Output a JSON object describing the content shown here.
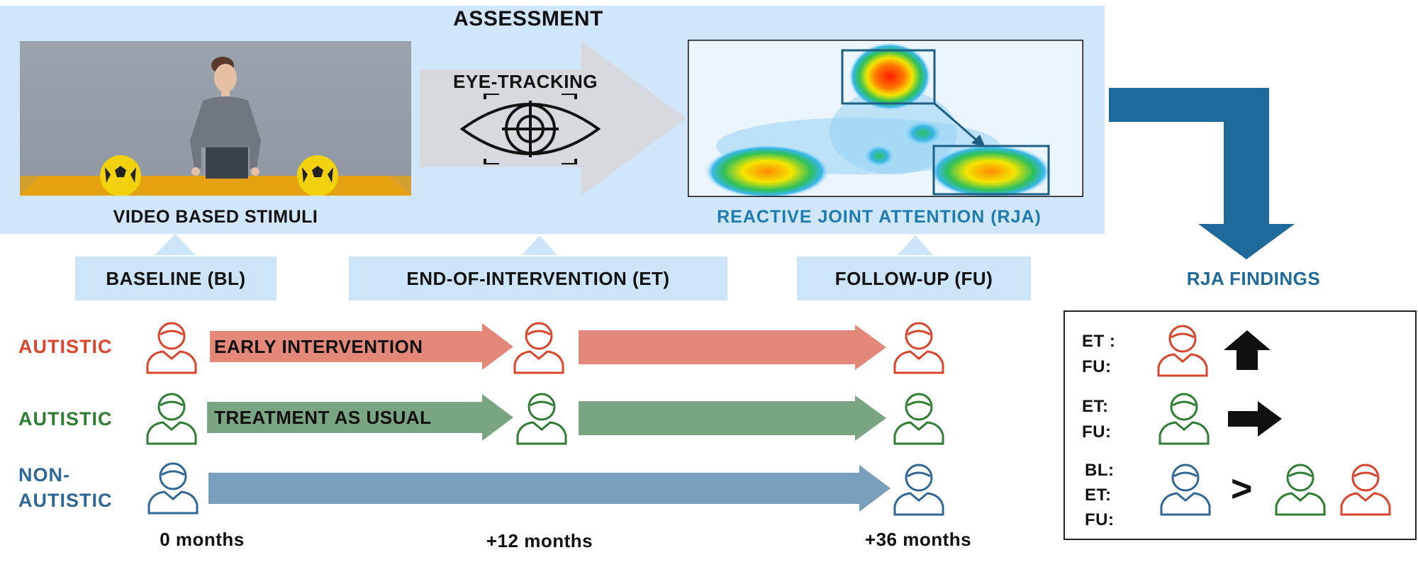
{
  "assessment": {
    "title": "ASSESSMENT",
    "stimuli_label": "VIDEO BASED STIMULI",
    "eye_tracking_label": "EYE-TRACKING",
    "rja_label": "REACTIVE JOINT ATTENTION (RJA)"
  },
  "timepoints": [
    {
      "label": "BASELINE (BL)",
      "time": "0 months"
    },
    {
      "label": "END-OF-INTERVENTION (ET)",
      "time": "+12 months"
    },
    {
      "label": "FOLLOW-UP (FU)",
      "time": "+36 months"
    }
  ],
  "groups": [
    {
      "name": "AUTISTIC",
      "arm": "EARLY INTERVENTION",
      "color": "#d9442b",
      "arrow_color": "#e4897a"
    },
    {
      "name": "AUTISTIC",
      "arm": "TREATMENT AS USUAL",
      "color": "#2e7d32",
      "arrow_color": "#7aa582"
    },
    {
      "name_line1": "NON-",
      "name_line2": "AUTISTIC",
      "color": "#2f6796",
      "arrow_color": "#7a9fbd"
    }
  ],
  "findings": {
    "title": "RJA FINDINGS",
    "row1": {
      "l1": "ET :",
      "l2": "FU:"
    },
    "row2": {
      "l1": "ET:",
      "l2": "FU:"
    },
    "row3": {
      "l1": "BL:",
      "l2": "ET:",
      "l3": "FU:",
      "comparator": ">"
    }
  },
  "colors": {
    "panel": "#cfe6fb",
    "accent": "#1e6a9a",
    "rja_text": "#1e7bb0"
  }
}
